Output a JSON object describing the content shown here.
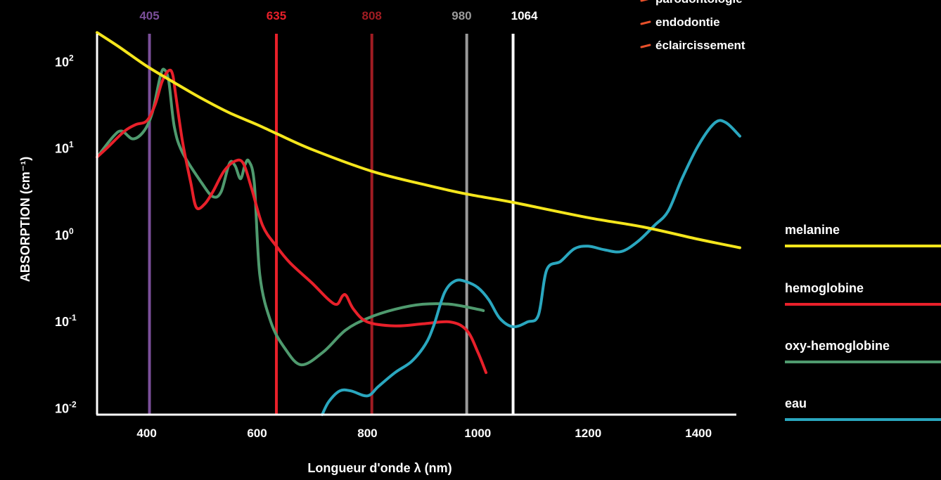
{
  "chart_data": {
    "type": "line",
    "xlabel": "Longueur d'onde λ (nm)",
    "ylabel": "ABSORPTION (cm⁻¹)",
    "ylog": true,
    "xlim": [
      310,
      1475
    ],
    "ylim": [
      0.0085,
      450
    ],
    "grid": false,
    "legend_placement": "right",
    "x_ticks": [
      {
        "value": 400,
        "label": "400"
      },
      {
        "value": 600,
        "label": "600"
      },
      {
        "value": 800,
        "label": "800"
      },
      {
        "value": 1000,
        "label": "1000"
      },
      {
        "value": 1200,
        "label": "1200"
      },
      {
        "value": 1400,
        "label": "1400"
      }
    ],
    "y_ticks": [
      {
        "value": 100,
        "base": "10",
        "exp": "2"
      },
      {
        "value": 10,
        "base": "10",
        "exp": "1"
      },
      {
        "value": 1,
        "base": "10",
        "exp": "0"
      },
      {
        "value": 0.1,
        "base": "10",
        "exp": "-1"
      },
      {
        "value": 0.01,
        "base": "10",
        "exp": "-2"
      }
    ],
    "wavelength_lines": [
      {
        "x": 405,
        "label": "405",
        "color": "#7b4f9a"
      },
      {
        "x": 635,
        "label": "635",
        "color": "#e8202a"
      },
      {
        "x": 808,
        "label": "808",
        "color": "#a01c22"
      },
      {
        "x": 980,
        "label": "980",
        "color": "#9a9a9a"
      },
      {
        "x": 1064,
        "label": "1064",
        "color": "#ffffff"
      }
    ],
    "annotations": [
      {
        "label": "parodontologie",
        "marker_color": "#e8502a"
      },
      {
        "label": "endodontie",
        "marker_color": "#e8502a"
      },
      {
        "label": "éclaircissement",
        "marker_color": "#e8502a"
      }
    ],
    "series": [
      {
        "name": "melanine",
        "color": "#f5e61c",
        "points": [
          [
            310,
            220
          ],
          [
            350,
            150
          ],
          [
            400,
            90
          ],
          [
            450,
            58
          ],
          [
            500,
            38
          ],
          [
            550,
            26
          ],
          [
            600,
            19
          ],
          [
            635,
            15
          ],
          [
            700,
            9.8
          ],
          [
            808,
            5.5
          ],
          [
            900,
            3.9
          ],
          [
            980,
            3.0
          ],
          [
            1064,
            2.4
          ],
          [
            1200,
            1.6
          ],
          [
            1300,
            1.25
          ],
          [
            1400,
            0.9
          ],
          [
            1475,
            0.72
          ]
        ]
      },
      {
        "name": "hemoglobine",
        "color": "#e8202a",
        "points": [
          [
            310,
            8
          ],
          [
            330,
            10.5
          ],
          [
            360,
            16
          ],
          [
            380,
            19
          ],
          [
            400,
            21
          ],
          [
            415,
            32
          ],
          [
            428,
            60
          ],
          [
            440,
            80
          ],
          [
            447,
            72
          ],
          [
            453,
            40
          ],
          [
            465,
            12
          ],
          [
            480,
            4
          ],
          [
            490,
            2.1
          ],
          [
            505,
            2.3
          ],
          [
            520,
            3.2
          ],
          [
            540,
            5.5
          ],
          [
            560,
            7.2
          ],
          [
            575,
            6.8
          ],
          [
            590,
            3.5
          ],
          [
            610,
            1.3
          ],
          [
            635,
            0.75
          ],
          [
            660,
            0.48
          ],
          [
            700,
            0.28
          ],
          [
            730,
            0.18
          ],
          [
            745,
            0.16
          ],
          [
            755,
            0.2
          ],
          [
            762,
            0.2
          ],
          [
            775,
            0.14
          ],
          [
            800,
            0.1
          ],
          [
            850,
            0.09
          ],
          [
            900,
            0.095
          ],
          [
            950,
            0.1
          ],
          [
            980,
            0.08
          ],
          [
            1000,
            0.045
          ],
          [
            1015,
            0.026
          ]
        ]
      },
      {
        "name": "oxy-hemoglobine",
        "color": "#4f9a6e",
        "points": [
          [
            310,
            8
          ],
          [
            340,
            14
          ],
          [
            355,
            16
          ],
          [
            375,
            13
          ],
          [
            395,
            16
          ],
          [
            410,
            26
          ],
          [
            425,
            70
          ],
          [
            432,
            82
          ],
          [
            440,
            60
          ],
          [
            450,
            18
          ],
          [
            465,
            9
          ],
          [
            500,
            4
          ],
          [
            520,
            2.8
          ],
          [
            535,
            3.2
          ],
          [
            550,
            6.8
          ],
          [
            560,
            6.4
          ],
          [
            570,
            4.5
          ],
          [
            578,
            6.5
          ],
          [
            585,
            7.2
          ],
          [
            595,
            4
          ],
          [
            605,
            0.35
          ],
          [
            625,
            0.1
          ],
          [
            650,
            0.05
          ],
          [
            680,
            0.032
          ],
          [
            720,
            0.045
          ],
          [
            760,
            0.08
          ],
          [
            800,
            0.11
          ],
          [
            850,
            0.14
          ],
          [
            900,
            0.16
          ],
          [
            950,
            0.16
          ],
          [
            1000,
            0.14
          ],
          [
            1010,
            0.135
          ]
        ]
      },
      {
        "name": "eau",
        "color": "#2aa7bf",
        "points": [
          [
            718,
            0.0085
          ],
          [
            730,
            0.012
          ],
          [
            750,
            0.016
          ],
          [
            770,
            0.016
          ],
          [
            800,
            0.014
          ],
          [
            820,
            0.018
          ],
          [
            850,
            0.026
          ],
          [
            880,
            0.035
          ],
          [
            905,
            0.055
          ],
          [
            920,
            0.09
          ],
          [
            940,
            0.22
          ],
          [
            960,
            0.3
          ],
          [
            980,
            0.29
          ],
          [
            1000,
            0.25
          ],
          [
            1020,
            0.18
          ],
          [
            1040,
            0.11
          ],
          [
            1064,
            0.088
          ],
          [
            1090,
            0.1
          ],
          [
            1110,
            0.12
          ],
          [
            1125,
            0.4
          ],
          [
            1150,
            0.5
          ],
          [
            1175,
            0.7
          ],
          [
            1200,
            0.75
          ],
          [
            1230,
            0.68
          ],
          [
            1260,
            0.65
          ],
          [
            1290,
            0.85
          ],
          [
            1320,
            1.3
          ],
          [
            1345,
            1.9
          ],
          [
            1370,
            4.5
          ],
          [
            1400,
            11
          ],
          [
            1430,
            20
          ],
          [
            1450,
            20
          ],
          [
            1475,
            14
          ]
        ]
      }
    ]
  }
}
